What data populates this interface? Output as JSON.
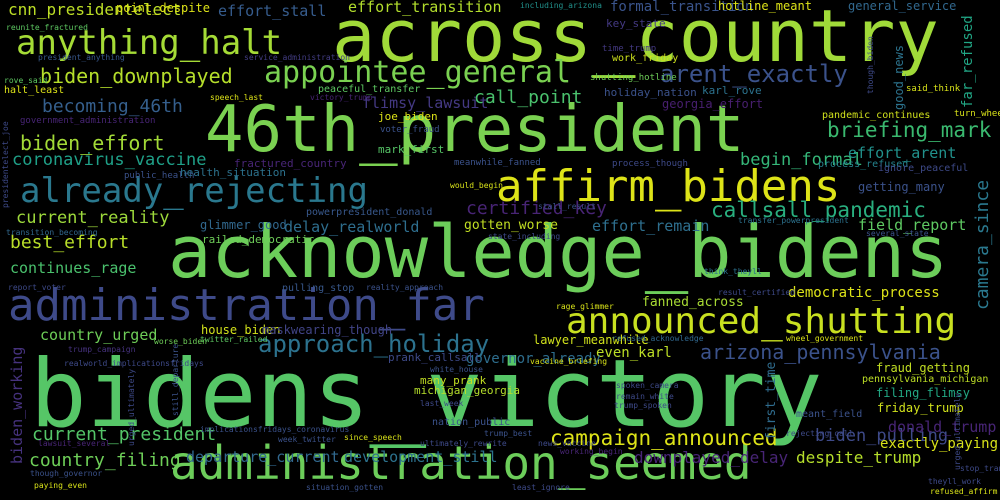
{
  "words": [
    {
      "text": "bidens_victory",
      "color": "#56c667"
    },
    {
      "text": "acknowledge_bidens",
      "color": "#6ccd5a"
    },
    {
      "text": "46th_president",
      "color": "#7ad151"
    },
    {
      "text": "across_country",
      "color": "#a0da39"
    },
    {
      "text": "administration_seemed",
      "color": "#6ccd5a"
    },
    {
      "text": "administration_far",
      "color": "#3e4a89"
    },
    {
      "text": "affirm_bidens",
      "color": "#dde318"
    },
    {
      "text": "announced_shutting",
      "color": "#c8e020"
    },
    {
      "text": "already_rejecting",
      "color": "#2a788e"
    },
    {
      "text": "anything_halt",
      "color": "#a5db36"
    },
    {
      "text": "appointee_general",
      "color": "#7ad151"
    },
    {
      "text": "approach_holiday",
      "color": "#2c728e"
    },
    {
      "text": "arent_exactly",
      "color": "#3b528b"
    },
    {
      "text": "biden_downplayed",
      "color": "#b5de2b"
    },
    {
      "text": "briefing_mark",
      "color": "#3ab96f"
    },
    {
      "text": "callsall_pandemic",
      "color": "#29af7f"
    },
    {
      "text": "campaign_announced",
      "color": "#dde318"
    },
    {
      "text": "arizona_pennsylvania",
      "color": "#3b528b"
    },
    {
      "text": "current_president",
      "color": "#54c568"
    },
    {
      "text": "country_filing",
      "color": "#6ece58"
    },
    {
      "text": "biden_effort",
      "color": "#a2da37"
    },
    {
      "text": "becoming_46th",
      "color": "#355f8d"
    },
    {
      "text": "coronavirus_vaccine",
      "color": "#1fa088"
    },
    {
      "text": "best_effort",
      "color": "#b8de29"
    },
    {
      "text": "current_reality",
      "color": "#9dd93b"
    },
    {
      "text": "continues_rage",
      "color": "#4ac16d"
    },
    {
      "text": "cnn_presidentelect",
      "color": "#bddf26"
    },
    {
      "text": "effort_stall",
      "color": "#365c8d"
    },
    {
      "text": "effort_transition",
      "color": "#b2dd2d"
    },
    {
      "text": "formal_transition",
      "color": "#3a548c"
    },
    {
      "text": "call_point",
      "color": "#4ac16d"
    },
    {
      "text": "flimsy_lawsuit",
      "color": "#443983"
    },
    {
      "text": "begin_formal",
      "color": "#35b779"
    },
    {
      "text": "effort_arent",
      "color": "#21918c"
    },
    {
      "text": "certified_key",
      "color": "#482475"
    },
    {
      "text": "delay_realworld",
      "color": "#2e6e8e"
    },
    {
      "text": "effort_remain",
      "color": "#2e6f8e"
    },
    {
      "text": "field_report",
      "color": "#5ec962"
    },
    {
      "text": "country_urged",
      "color": "#6ece58"
    },
    {
      "text": "biden_working",
      "color": "#46327e"
    },
    {
      "text": "departure_current",
      "color": "#31688e"
    },
    {
      "text": "development_still",
      "color": "#2c728e"
    },
    {
      "text": "downplayed_delay",
      "color": "#482576"
    },
    {
      "text": "despite_trump",
      "color": "#b5de2b"
    },
    {
      "text": "biden_pulling",
      "color": "#3e4a89"
    },
    {
      "text": "donald_trump",
      "color": "#482576"
    },
    {
      "text": "exactly_paying",
      "color": "#d8e219"
    },
    {
      "text": "friday_trump",
      "color": "#d0e11c"
    },
    {
      "text": "filing_flimsy",
      "color": "#22a884"
    },
    {
      "text": "fraud_getting",
      "color": "#c2df23"
    },
    {
      "text": "camera_since",
      "color": "#2a788e"
    },
    {
      "text": "far_refused",
      "color": "#21a685"
    },
    {
      "text": "democratic_process",
      "color": "#dde318"
    },
    {
      "text": "fanned_across",
      "color": "#a8db34"
    },
    {
      "text": "even_karl",
      "color": "#bddf26"
    },
    {
      "text": "first_time",
      "color": "#2f6c8e"
    },
    {
      "text": "gotten_worse",
      "color": "#c2df23"
    },
    {
      "text": "getting_many",
      "color": "#3b528b"
    },
    {
      "text": "glimmer_good",
      "color": "#31688e"
    },
    {
      "text": "good_news",
      "color": "#2c738e"
    },
    {
      "text": "governor_already",
      "color": "#2e6e8e"
    },
    {
      "text": "house_biden",
      "color": "#d2e21b"
    },
    {
      "text": "lawyer_meanwhile",
      "color": "#d0e11c"
    },
    {
      "text": "maskwearing_though",
      "color": "#414487"
    },
    {
      "text": "pulling_stop",
      "color": "#38588c"
    },
    {
      "text": "railed_democratic",
      "color": "#6ece58"
    },
    {
      "text": "prank_callsall",
      "color": "#3e4a89"
    },
    {
      "text": "many_prank",
      "color": "#c2df23"
    },
    {
      "text": "michigan_georgia",
      "color": "#b5de2b"
    },
    {
      "text": "pennsylvania_michigan",
      "color": "#bddf26"
    },
    {
      "text": "karl_rove",
      "color": "#2c728e"
    },
    {
      "text": "joe_biden",
      "color": "#dde318"
    },
    {
      "text": "mark_first",
      "color": "#56c667"
    },
    {
      "text": "georgia_effort",
      "color": "#481f70"
    },
    {
      "text": "holiday_nation",
      "color": "#3b528b"
    },
    {
      "text": "nation_public",
      "color": "#3b528b"
    },
    {
      "text": "hotline_meant",
      "color": "#dde318"
    },
    {
      "text": "key_state",
      "color": "#443983"
    },
    {
      "text": "general_service",
      "color": "#31688e"
    },
    {
      "text": "point_despite",
      "color": "#dde318"
    },
    {
      "text": "powerpresident_donald",
      "color": "#38588c"
    },
    {
      "text": "pandemic_continues",
      "color": "#d0e11c"
    },
    {
      "text": "process_refused",
      "color": "#25848e"
    },
    {
      "text": "ignore_peaceful",
      "color": "#3e4a89"
    },
    {
      "text": "peaceful_transfer",
      "color": "#5ec962"
    },
    {
      "text": "work_friday",
      "color": "#cde11d"
    },
    {
      "text": "time_trump",
      "color": "#443983"
    },
    {
      "text": "said_think",
      "color": "#d8e219"
    },
    {
      "text": "turn_wheel",
      "color": "#d8e219"
    },
    {
      "text": "though_biden",
      "color": "#3e4a89"
    },
    {
      "text": "public_health",
      "color": "#3b528b"
    },
    {
      "text": "health_situation",
      "color": "#2c728e"
    },
    {
      "text": "fractured_country",
      "color": "#482576"
    },
    {
      "text": "reunite_fractured",
      "color": "#5ec962"
    },
    {
      "text": "service_administration",
      "color": "#433d84"
    },
    {
      "text": "rove_said",
      "color": "#5ec962"
    },
    {
      "text": "halt_least",
      "color": "#dde318"
    },
    {
      "text": "speech_last",
      "color": "#dde318"
    },
    {
      "text": "victory_trump",
      "color": "#482475"
    },
    {
      "text": "government_administration",
      "color": "#482576"
    },
    {
      "text": "presidentelect_joe",
      "color": "#3e4a89"
    },
    {
      "text": "voter_fraud",
      "color": "#3b528b"
    },
    {
      "text": "meanwhile_fanned",
      "color": "#3b528b"
    },
    {
      "text": "process_though",
      "color": "#3e4a89"
    },
    {
      "text": "transition_becoming",
      "color": "#31688e"
    },
    {
      "text": "president_anything",
      "color": "#38588c"
    },
    {
      "text": "shutting_hotline",
      "color": "#6ece58"
    },
    {
      "text": "including_arizona",
      "color": "#21918c"
    },
    {
      "text": "refused_acknowledge",
      "color": "#31688e"
    },
    {
      "text": "would_begin",
      "color": "#d8e219"
    },
    {
      "text": "stall_result",
      "color": "#3b528b"
    },
    {
      "text": "state_including",
      "color": "#3e4a89"
    },
    {
      "text": "transfer_powerpresident",
      "color": "#2c728e"
    },
    {
      "text": "result_certified",
      "color": "#3e4a89"
    },
    {
      "text": "reality_approach",
      "color": "#3b528b"
    },
    {
      "text": "rage_glimmer",
      "color": "#d8e219"
    },
    {
      "text": "think_theyll",
      "color": "#2c728e"
    },
    {
      "text": "report_voter",
      "color": "#3e4a89"
    },
    {
      "text": "wheel_government",
      "color": "#d8e219"
    },
    {
      "text": "worse_biden",
      "color": "#6ece58"
    },
    {
      "text": "twitter_railed",
      "color": "#5ec962"
    },
    {
      "text": "trump_campaign",
      "color": "#46327e"
    },
    {
      "text": "realworld_implicationsfridays",
      "color": "#3e4a89"
    },
    {
      "text": "white_house",
      "color": "#3b528b"
    },
    {
      "text": "implicationsfridays_coronavirus",
      "color": "#3b528b"
    },
    {
      "text": "week_twitter",
      "color": "#3b528b"
    },
    {
      "text": "since_speech",
      "color": "#d8e219"
    },
    {
      "text": "ultimately_rewrite",
      "color": "#3e4a89"
    },
    {
      "text": "trump_best",
      "color": "#3b528b"
    },
    {
      "text": "spoken_camera",
      "color": "#3e4a89"
    },
    {
      "text": "remain_white",
      "color": "#3e4a89"
    },
    {
      "text": "vaccine_briefing",
      "color": "#d8e219"
    },
    {
      "text": "trump_spoken",
      "color": "#3e4a89"
    },
    {
      "text": "meant_field",
      "color": "#3b528b"
    },
    {
      "text": "rejecting_call",
      "color": "#3e4a89"
    },
    {
      "text": "last_week",
      "color": "#3e4a89"
    },
    {
      "text": "still_departure",
      "color": "#3b528b"
    },
    {
      "text": "urged_ultimately",
      "color": "#3e4a89"
    },
    {
      "text": "lawsuit_several",
      "color": "#482576"
    },
    {
      "text": "though_governor",
      "color": "#3b528b"
    },
    {
      "text": "paying_even",
      "color": "#d8e219"
    },
    {
      "text": "situation_gotten",
      "color": "#3b528b"
    },
    {
      "text": "least_ignore",
      "color": "#3e4a89"
    },
    {
      "text": "news_vaccine",
      "color": "#3e4a89"
    },
    {
      "text": "working_begin",
      "color": "#482576"
    },
    {
      "text": "theyll_work",
      "color": "#3e4a89"
    },
    {
      "text": "refused_affirm",
      "color": "#d8e219"
    },
    {
      "text": "stop_transition",
      "color": "#3e4a89"
    },
    {
      "text": "several_state",
      "color": "#3b528b"
    },
    {
      "text": "trump_lawyer",
      "color": "#3e4a89"
    }
  ]
}
